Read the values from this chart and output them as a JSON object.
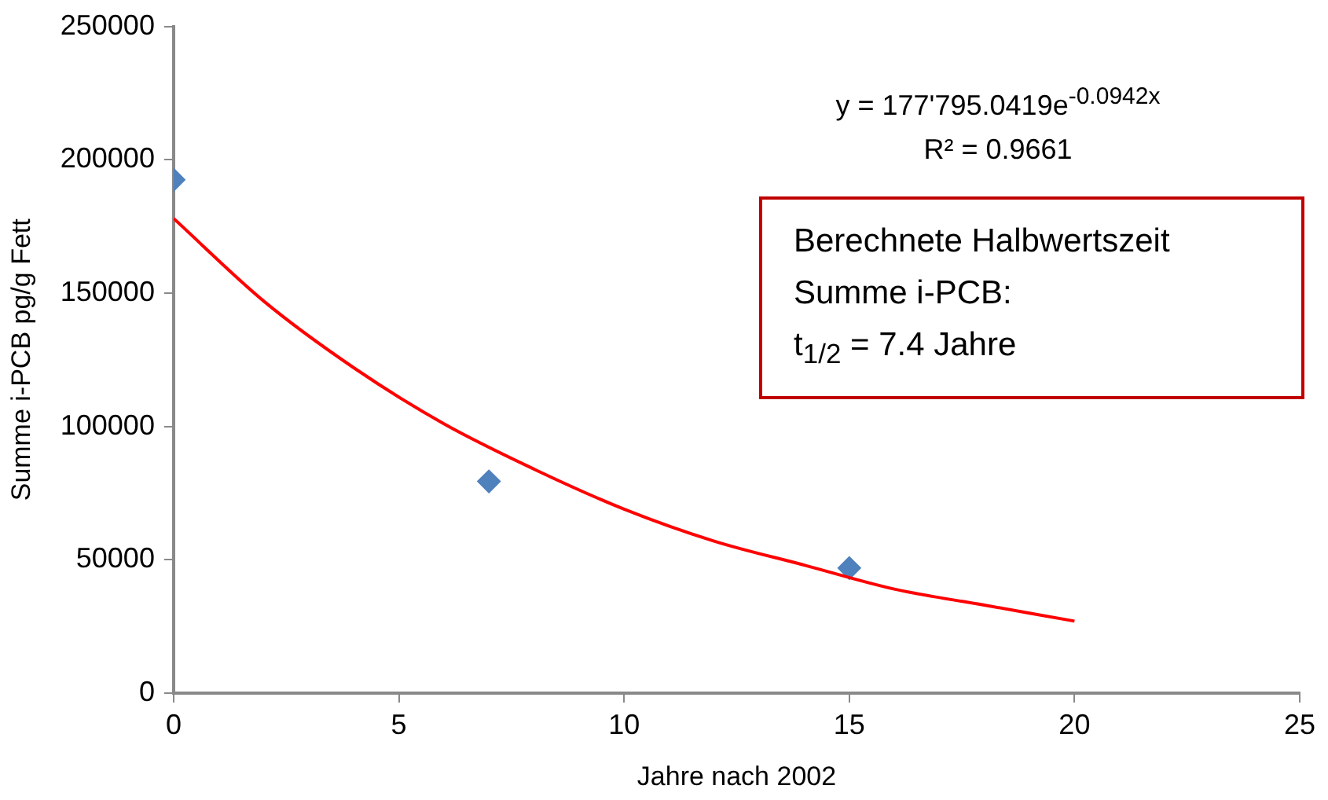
{
  "chart_data": {
    "type": "scatter",
    "xlabel": "Jahre nach 2002",
    "ylabel": "Summe i-PCB pg/g Fett",
    "series": [
      {
        "type": "scatter",
        "color": "#4f81bd",
        "marker": "diamond",
        "x": [
          0,
          7,
          15
        ],
        "values": [
          192500,
          79400,
          46900
        ]
      },
      {
        "type": "line",
        "color": "#ff0000",
        "marker": "none",
        "x": [
          0,
          2,
          4,
          6,
          8,
          10,
          12,
          14,
          16,
          18,
          20
        ],
        "values": [
          178000,
          147000,
          122000,
          101000,
          84000,
          69000,
          57000,
          48000,
          39000,
          33000,
          27000
        ]
      }
    ],
    "xlim": [
      0,
      25
    ],
    "xticks": [
      0,
      5,
      10,
      15,
      20,
      25
    ],
    "ylim": [
      0,
      250000
    ],
    "yticks": [
      0,
      50000,
      100000,
      150000,
      200000,
      250000
    ],
    "grid": false,
    "legend": false,
    "annotations": [
      "y = 177'795.0419e$^{-0.0942x}$",
      "R² = 0.9661",
      "Berechnete Halbwertszeit",
      "Summe i-PCB:",
      "t$_{1/2}$ = 7.4 Jahre"
    ]
  }
}
